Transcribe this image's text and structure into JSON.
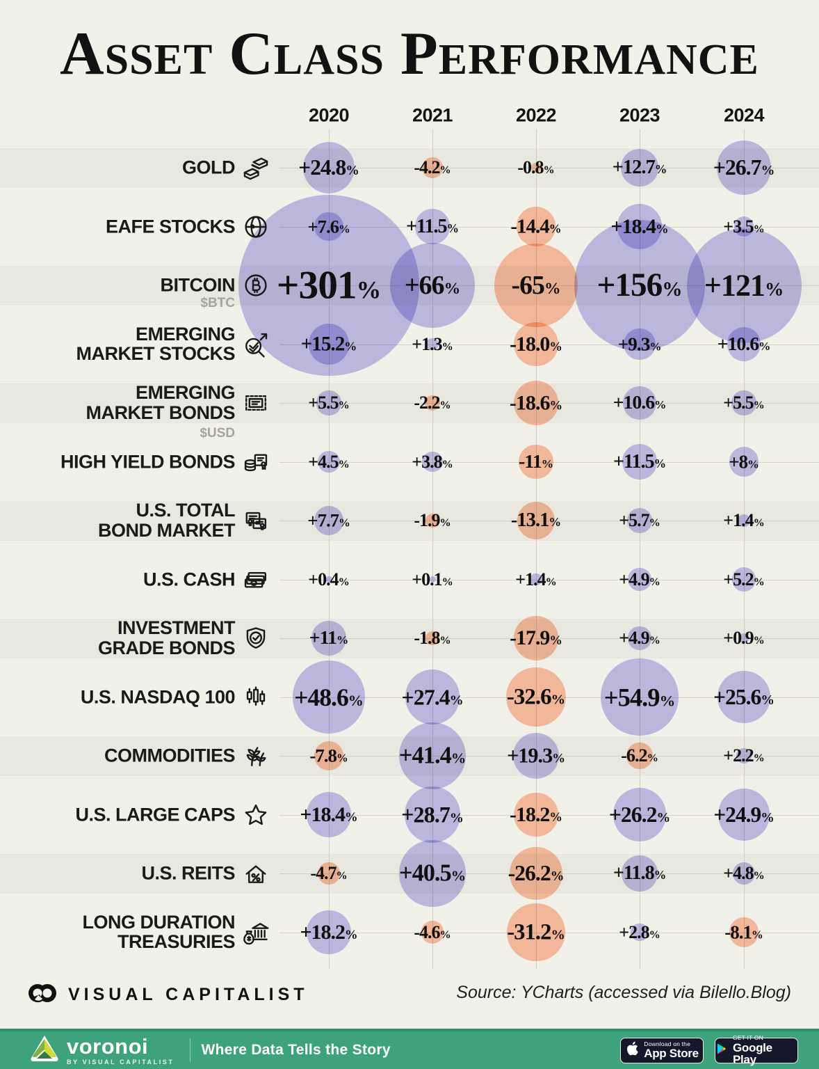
{
  "title": "Asset Class Performance",
  "source": "Source: YCharts (accessed via Bilello.Blog)",
  "branding": {
    "visual_capitalist": "VISUAL CAPITALIST"
  },
  "footer_bar": {
    "brand": "voronoi",
    "brand_sub": "BY VISUAL CAPITALIST",
    "tagline": "Where Data Tells the Story",
    "appstore_line1": "Download on the",
    "appstore_line2": "App Store",
    "gplay_line1": "GET IT ON",
    "gplay_line2": "Google Play"
  },
  "colors": {
    "background": "#f1f0e9",
    "stripe": "#e8e7e0",
    "gridline": "#c8c7bf",
    "positive_bubble": "#c6c2f0",
    "negative_bubble": "#ffc3a6",
    "green_bar": "#3ea27d",
    "ink": "#151515",
    "muted": "#a6a59d"
  },
  "chart_data": {
    "type": "bubble-matrix",
    "title": "Asset Class Performance",
    "columns": [
      "2020",
      "2021",
      "2022",
      "2023",
      "2024"
    ],
    "legend": "bubble area scales with absolute return; purple = positive, salmon = negative",
    "rows": [
      {
        "label": [
          "GOLD"
        ],
        "sublabel": "",
        "icon": "gold-bars-icon",
        "values": [
          24.8,
          -4.2,
          -0.8,
          12.7,
          26.7
        ],
        "display": [
          "+24.8%",
          "-4.2%",
          "-0.8%",
          "+12.7%",
          "+26.7%"
        ]
      },
      {
        "label": [
          "EAFE STOCKS"
        ],
        "sublabel": "",
        "icon": "globe-icon",
        "values": [
          7.6,
          11.5,
          -14.4,
          18.4,
          3.5
        ],
        "display": [
          "+7.6%",
          "+11.5%",
          "-14.4%",
          "+18.4%",
          "+3.5%"
        ]
      },
      {
        "label": [
          "BITCOIN"
        ],
        "sublabel": "$BTC",
        "icon": "bitcoin-icon",
        "values": [
          301,
          66,
          -65,
          156,
          121
        ],
        "display": [
          "+301%",
          "+66%",
          "-65%",
          "+156%",
          "+121%"
        ]
      },
      {
        "label": [
          "EMERGING",
          "MARKET STOCKS"
        ],
        "sublabel": "",
        "icon": "market-growth-icon",
        "values": [
          15.2,
          1.3,
          -18.0,
          9.3,
          10.6
        ],
        "display": [
          "+15.2%",
          "+1.3%",
          "-18.0%",
          "+9.3%",
          "+10.6%"
        ]
      },
      {
        "label": [
          "EMERGING",
          "MARKET BONDS"
        ],
        "sublabel": "$USD",
        "icon": "bond-stamp-icon",
        "values": [
          5.5,
          -2.2,
          -18.6,
          10.6,
          5.5
        ],
        "display": [
          "+5.5%",
          "-2.2%",
          "-18.6%",
          "+10.6%",
          "+5.5%"
        ]
      },
      {
        "label": [
          "HIGH YIELD BONDS"
        ],
        "sublabel": "",
        "icon": "coins-certificate-icon",
        "values": [
          4.5,
          3.8,
          -11,
          11.5,
          8
        ],
        "display": [
          "+4.5%",
          "+3.8%",
          "-11%",
          "+11.5%",
          "+8%"
        ]
      },
      {
        "label": [
          "U.S. TOTAL",
          "BOND MARKET"
        ],
        "sublabel": "",
        "icon": "certificates-icon",
        "values": [
          7.7,
          -1.9,
          -13.1,
          5.7,
          1.4
        ],
        "display": [
          "+7.7%",
          "-1.9%",
          "-13.1%",
          "+5.7%",
          "+1.4%"
        ]
      },
      {
        "label": [
          "U.S. CASH"
        ],
        "sublabel": "",
        "icon": "cash-stack-icon",
        "values": [
          0.4,
          0.1,
          1.4,
          4.9,
          5.2
        ],
        "display": [
          "+0.4%",
          "+0.1%",
          "+1.4%",
          "+4.9%",
          "+5.2%"
        ]
      },
      {
        "label": [
          "INVESTMENT",
          "GRADE BONDS"
        ],
        "sublabel": "",
        "icon": "shield-check-icon",
        "values": [
          11,
          -1.8,
          -17.9,
          4.9,
          0.9
        ],
        "display": [
          "+11%",
          "-1.8%",
          "-17.9%",
          "+4.9%",
          "+0.9%"
        ]
      },
      {
        "label": [
          "U.S. NASDAQ 100"
        ],
        "sublabel": "",
        "icon": "candlestick-chart-icon",
        "values": [
          48.6,
          27.4,
          -32.6,
          54.9,
          25.6
        ],
        "display": [
          "+48.6%",
          "+27.4%",
          "-32.6%",
          "+54.9%",
          "+25.6%"
        ]
      },
      {
        "label": [
          "COMMODITIES"
        ],
        "sublabel": "",
        "icon": "wheat-icon",
        "values": [
          -7.8,
          41.4,
          19.3,
          -6.2,
          2.2
        ],
        "display": [
          "-7.8%",
          "+41.4%",
          "+19.3%",
          "-6.2%",
          "+2.2%"
        ]
      },
      {
        "label": [
          "U.S. LARGE CAPS"
        ],
        "sublabel": "",
        "icon": "star-icon",
        "values": [
          18.4,
          28.7,
          -18.2,
          26.2,
          24.9
        ],
        "display": [
          "+18.4%",
          "+28.7%",
          "-18.2%",
          "+26.2%",
          "+24.9%"
        ]
      },
      {
        "label": [
          "U.S. REITS"
        ],
        "sublabel": "",
        "icon": "house-percent-icon",
        "values": [
          -4.7,
          40.5,
          -26.2,
          11.8,
          4.8
        ],
        "display": [
          "-4.7%",
          "+40.5%",
          "-26.2%",
          "+11.8%",
          "+4.8%"
        ]
      },
      {
        "label": [
          "LONG DURATION",
          "TREASURIES"
        ],
        "sublabel": "",
        "icon": "treasury-bank-icon",
        "values": [
          18.2,
          -4.6,
          -31.2,
          2.8,
          -8.1
        ],
        "display": [
          "+18.2%",
          "-4.6%",
          "-31.2%",
          "+2.8%",
          "-8.1%"
        ]
      }
    ]
  }
}
